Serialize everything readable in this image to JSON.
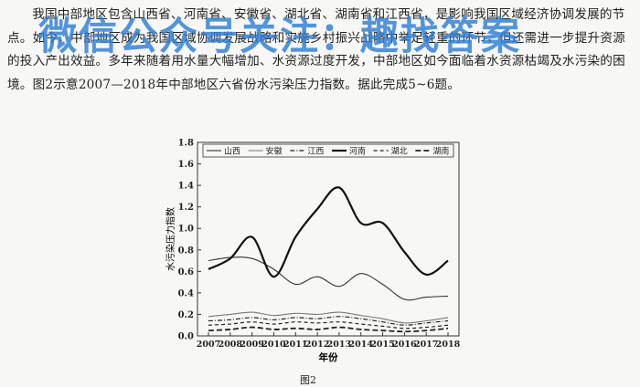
{
  "question": {
    "paragraph": "我国中部地区包含山西省、河南省、安徽省、湖北省、湖南省和江西省，是影响我国区域经济协调发展的节点。如今，中部地区成为我国区域协调发展战略和实施乡村振兴战略中举足轻重的环节，但还需进一步提升资源的投入产出效益。多年来随着用水量大幅增加、水资源过度开发，中部地区如今面临着水资源枯竭及水污染的困境。图2示意2007—2018年中部地区六省份水污染压力指数。据此完成5~6题。"
  },
  "watermark": "微信公众号关注：趣找答案",
  "chart_data": {
    "type": "line",
    "x": [
      2007,
      2008,
      2009,
      2010,
      2011,
      2012,
      2013,
      2014,
      2015,
      2016,
      2017,
      2018
    ],
    "series": [
      {
        "name": "山西",
        "style": "solid-thin",
        "color": "#333333",
        "values": [
          0.7,
          0.73,
          0.72,
          0.62,
          0.48,
          0.55,
          0.46,
          0.58,
          0.48,
          0.34,
          0.36,
          0.37
        ]
      },
      {
        "name": "安徽",
        "style": "solid-thin",
        "color": "#777777",
        "values": [
          0.18,
          0.2,
          0.22,
          0.19,
          0.21,
          0.2,
          0.22,
          0.19,
          0.16,
          0.12,
          0.14,
          0.17
        ]
      },
      {
        "name": "江西",
        "style": "dash-dot",
        "color": "#222222",
        "values": [
          0.14,
          0.15,
          0.17,
          0.15,
          0.17,
          0.16,
          0.18,
          0.16,
          0.13,
          0.1,
          0.12,
          0.14
        ]
      },
      {
        "name": "河南",
        "style": "solid-thick",
        "color": "#111111",
        "values": [
          0.62,
          0.72,
          0.92,
          0.55,
          0.92,
          1.18,
          1.38,
          1.05,
          1.05,
          0.78,
          0.57,
          0.7
        ]
      },
      {
        "name": "湖北",
        "style": "dashed",
        "color": "#222222",
        "values": [
          0.1,
          0.11,
          0.13,
          0.11,
          0.13,
          0.12,
          0.13,
          0.11,
          0.09,
          0.07,
          0.08,
          0.1
        ]
      },
      {
        "name": "湖南",
        "style": "dashed-heavy",
        "color": "#222222",
        "values": [
          0.05,
          0.06,
          0.08,
          0.06,
          0.07,
          0.06,
          0.08,
          0.06,
          0.05,
          0.04,
          0.05,
          0.07
        ]
      }
    ],
    "ylabel": "水污染压力指数",
    "xlabel": "年份",
    "ylim": [
      0,
      1.8
    ],
    "yticks": [
      "0.0",
      "0.2",
      "0.4",
      "0.6",
      "0.8",
      "1.0",
      "1.2",
      "1.4",
      "1.6",
      "1.8"
    ],
    "xticks": [
      "2007",
      "2008",
      "2009",
      "2010",
      "2011",
      "2012",
      "2013",
      "2014",
      "2015",
      "2016",
      "2017",
      "2018"
    ],
    "legend_position": "top",
    "caption": "图2"
  }
}
